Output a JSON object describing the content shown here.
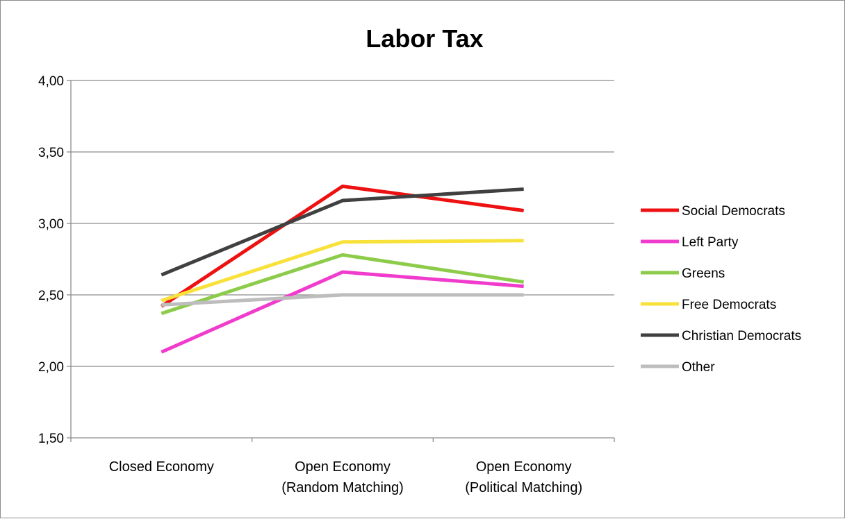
{
  "chart_data": {
    "type": "line",
    "title": "Labor Tax",
    "xlabel": "",
    "ylabel": "",
    "ylim": [
      1.5,
      4.0
    ],
    "yticks": [
      "1,50",
      "2,00",
      "2,50",
      "3,00",
      "3,50",
      "4,00"
    ],
    "ytick_values": [
      1.5,
      2.0,
      2.5,
      3.0,
      3.5,
      4.0
    ],
    "categories": [
      [
        "Closed Economy"
      ],
      [
        "Open Economy",
        "(Random Matching)"
      ],
      [
        "Open Economy",
        "(Political Matching)"
      ]
    ],
    "grid": "horizontal",
    "legend_position": "right",
    "series": [
      {
        "name": "Social Democrats",
        "color": "#ee1111",
        "values": [
          2.42,
          3.26,
          3.09
        ]
      },
      {
        "name": "Left Party",
        "color": "#f03ccc",
        "values": [
          2.1,
          2.66,
          2.56
        ]
      },
      {
        "name": "Greens",
        "color": "#8dcc4a",
        "values": [
          2.37,
          2.78,
          2.59
        ]
      },
      {
        "name": "Free Democrats",
        "color": "#f8e13a",
        "values": [
          2.46,
          2.87,
          2.88
        ]
      },
      {
        "name": "Christian Democrats",
        "color": "#404040",
        "values": [
          2.64,
          3.16,
          3.24
        ]
      },
      {
        "name": "Other",
        "color": "#bdbdbd",
        "values": [
          2.43,
          2.5,
          2.5
        ]
      }
    ]
  }
}
